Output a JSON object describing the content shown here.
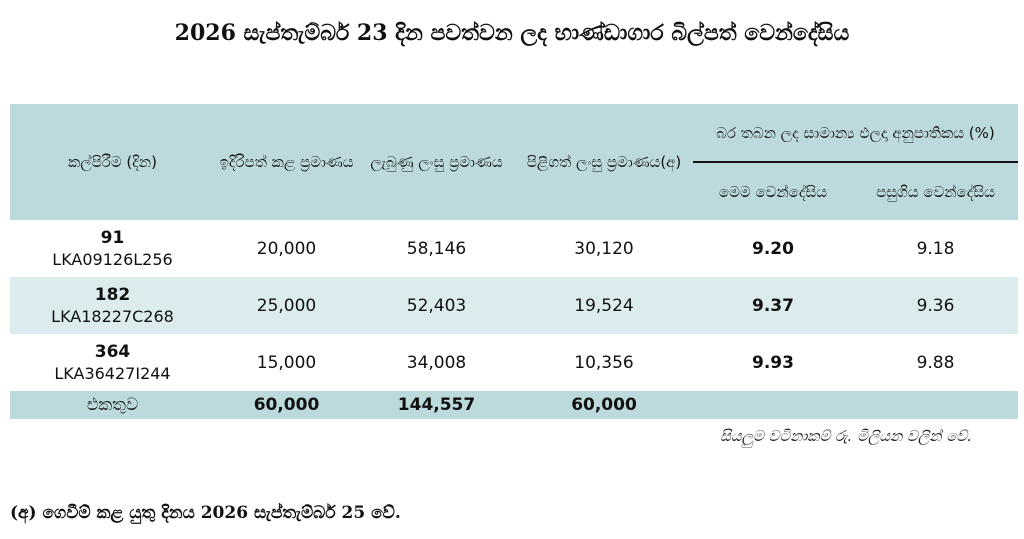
{
  "title": "2026 සැප්තැම්බර් 23 දින පවත්වන ලද භාණ්ඩාගාර බිල්පත් වෙන්දේසිය",
  "table": {
    "headers": {
      "tenor": "කල්පිරීම (දින)",
      "offered": "ඉදිරිපත් කළ ප්‍රමාණය",
      "received": "ලැබුණු ලංසු ප්‍රමාණය",
      "accepted": "පිළිගත් ලංසු ප්‍රමාණය(අ)",
      "yield_group": "බර තබන ලද සාමාන්‍ය ඵලදා අනුපාතිකය (%)",
      "this_auction": "මෙම වෙන්දේසිය",
      "previous_auction": "පසුගිය වෙන්දේසිය"
    },
    "rows": [
      {
        "days": "91",
        "code": "LKA09126L256",
        "offered": "20,000",
        "received": "58,146",
        "accepted": "30,120",
        "this_yield": "9.20",
        "prev_yield": "9.18"
      },
      {
        "days": "182",
        "code": "LKA18227C268",
        "offered": "25,000",
        "received": "52,403",
        "accepted": "19,524",
        "this_yield": "9.37",
        "prev_yield": "9.36"
      },
      {
        "days": "364",
        "code": "LKA36427I244",
        "offered": "15,000",
        "received": "34,008",
        "accepted": "10,356",
        "this_yield": "9.93",
        "prev_yield": "9.88"
      }
    ],
    "total": {
      "label": "එකතුව",
      "offered": "60,000",
      "received": "144,557",
      "accepted": "60,000"
    }
  },
  "note": "සියලුම වටිනාකම් රු. මිලියන වලින් වේ.",
  "footnote": "(අ) ගෙවීම් කළ යුතු දිනය 2026 සැප්තැම්බර් 25 වේ."
}
